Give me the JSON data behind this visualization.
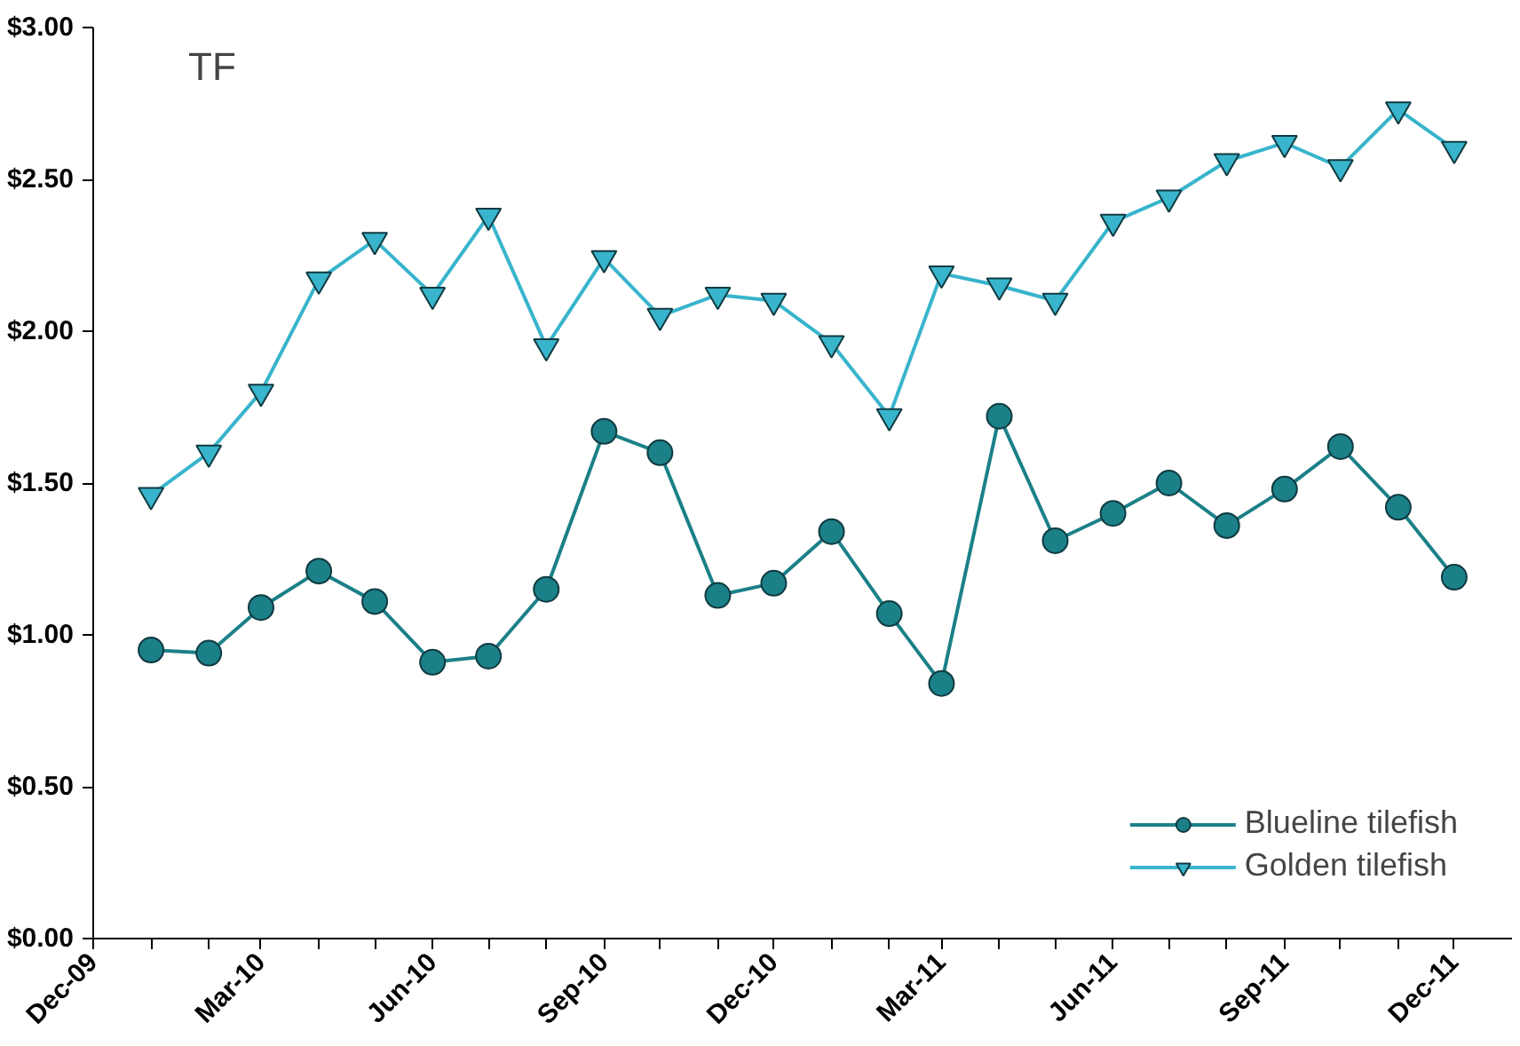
{
  "chart_data": {
    "type": "line",
    "title": "TF",
    "x": [
      "2010-01",
      "2010-02",
      "2010-03",
      "2010-04",
      "2010-05",
      "2010-06",
      "2010-07",
      "2010-08",
      "2010-09",
      "2010-10",
      "2010-11",
      "2010-12",
      "2011-01",
      "2011-02",
      "2011-03",
      "2011-04",
      "2011-05",
      "2011-06",
      "2011-07",
      "2011-08",
      "2011-09",
      "2011-10",
      "2011-11",
      "2011-12"
    ],
    "series": [
      {
        "name": "Blueline tilefish",
        "color": "#1b8088",
        "marker": "circle",
        "values": [
          0.95,
          0.94,
          1.09,
          1.21,
          1.11,
          0.91,
          0.93,
          1.15,
          1.67,
          1.6,
          1.13,
          1.17,
          1.34,
          1.07,
          0.84,
          1.72,
          1.31,
          1.4,
          1.5,
          1.36,
          1.48,
          1.62,
          1.42,
          1.19
        ]
      },
      {
        "name": "Golden tilefish",
        "color": "#38b4cc",
        "marker": "triangle",
        "values": [
          1.46,
          1.6,
          1.8,
          2.17,
          2.3,
          2.12,
          2.38,
          1.95,
          2.24,
          2.05,
          2.12,
          2.1,
          1.96,
          1.72,
          2.19,
          2.15,
          2.1,
          2.36,
          2.44,
          2.56,
          2.62,
          2.54,
          2.73,
          2.6
        ]
      }
    ],
    "xlim": [
      "2009-12",
      "2012-01"
    ],
    "xticks": [
      {
        "value": "2009-12",
        "label": "Dec-09"
      },
      {
        "value": "2010-01",
        "label": null
      },
      {
        "value": "2010-02",
        "label": null
      },
      {
        "value": "2010-03",
        "label": "Mar-10"
      },
      {
        "value": "2010-04",
        "label": null
      },
      {
        "value": "2010-05",
        "label": null
      },
      {
        "value": "2010-06",
        "label": "Jun-10"
      },
      {
        "value": "2010-07",
        "label": null
      },
      {
        "value": "2010-08",
        "label": null
      },
      {
        "value": "2010-09",
        "label": "Sep-10"
      },
      {
        "value": "2010-10",
        "label": null
      },
      {
        "value": "2010-11",
        "label": null
      },
      {
        "value": "2010-12",
        "label": "Dec-10"
      },
      {
        "value": "2011-01",
        "label": null
      },
      {
        "value": "2011-02",
        "label": null
      },
      {
        "value": "2011-03",
        "label": "Mar-11"
      },
      {
        "value": "2011-04",
        "label": null
      },
      {
        "value": "2011-05",
        "label": null
      },
      {
        "value": "2011-06",
        "label": "Jun-11"
      },
      {
        "value": "2011-07",
        "label": null
      },
      {
        "value": "2011-08",
        "label": null
      },
      {
        "value": "2011-09",
        "label": "Sep-11"
      },
      {
        "value": "2011-10",
        "label": null
      },
      {
        "value": "2011-11",
        "label": null
      },
      {
        "value": "2011-12",
        "label": "Dec-11"
      }
    ],
    "ylim": [
      0,
      3
    ],
    "yticks": [
      {
        "value": 0,
        "label": "$0.00"
      },
      {
        "value": 0.5,
        "label": "$0.50"
      },
      {
        "value": 1,
        "label": "$1.00"
      },
      {
        "value": 1.5,
        "label": "$1.50"
      },
      {
        "value": 2,
        "label": "$2.00"
      },
      {
        "value": 2.5,
        "label": "$2.50"
      },
      {
        "value": 3,
        "label": "$3.00"
      }
    ],
    "grid": false,
    "legend": "bottom right",
    "line_style": "solid"
  }
}
